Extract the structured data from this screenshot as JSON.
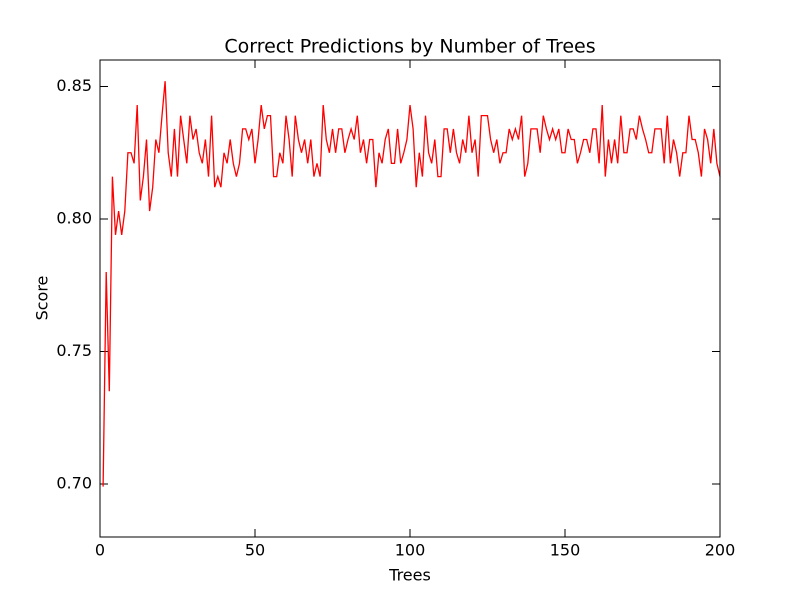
{
  "chart_data": {
    "type": "line",
    "title": "Correct Predictions by Number of Trees",
    "x_label": "Trees",
    "y_label": "Score",
    "x": [
      1,
      2,
      3,
      4,
      5,
      6,
      7,
      8,
      9,
      10,
      11,
      12,
      13,
      14,
      15,
      16,
      17,
      18,
      19,
      20,
      21,
      22,
      23,
      24,
      25,
      26,
      27,
      28,
      29,
      30,
      31,
      32,
      33,
      34,
      35,
      36,
      37,
      38,
      39,
      40,
      41,
      42,
      43,
      44,
      45,
      46,
      47,
      48,
      49,
      50,
      51,
      52,
      53,
      54,
      55,
      56,
      57,
      58,
      59,
      60,
      61,
      62,
      63,
      64,
      65,
      66,
      67,
      68,
      69,
      70,
      71,
      72,
      73,
      74,
      75,
      76,
      77,
      78,
      79,
      80,
      81,
      82,
      83,
      84,
      85,
      86,
      87,
      88,
      89,
      90,
      91,
      92,
      93,
      94,
      95,
      96,
      97,
      98,
      99,
      100,
      101,
      102,
      103,
      104,
      105,
      106,
      107,
      108,
      109,
      110,
      111,
      112,
      113,
      114,
      115,
      116,
      117,
      118,
      119,
      120,
      121,
      122,
      123,
      124,
      125,
      126,
      127,
      128,
      129,
      130,
      131,
      132,
      133,
      134,
      135,
      136,
      137,
      138,
      139,
      140,
      141,
      142,
      143,
      144,
      145,
      146,
      147,
      148,
      149,
      150,
      151,
      152,
      153,
      154,
      155,
      156,
      157,
      158,
      159,
      160,
      161,
      162,
      163,
      164,
      165,
      166,
      167,
      168,
      169,
      170,
      171,
      172,
      173,
      174,
      175,
      176,
      177,
      178,
      179,
      180,
      181,
      182,
      183,
      184,
      185,
      186,
      187,
      188,
      189,
      190,
      191,
      192,
      193,
      194,
      195,
      196,
      197,
      198,
      199,
      200
    ],
    "series": [
      {
        "color": "#ff0000",
        "values": [
          0.699,
          0.78,
          0.735,
          0.816,
          0.794,
          0.803,
          0.794,
          0.803,
          0.825,
          0.825,
          0.821,
          0.843,
          0.807,
          0.816,
          0.83,
          0.803,
          0.812,
          0.83,
          0.825,
          0.839,
          0.852,
          0.825,
          0.816,
          0.834,
          0.816,
          0.839,
          0.83,
          0.821,
          0.839,
          0.83,
          0.834,
          0.825,
          0.821,
          0.83,
          0.816,
          0.839,
          0.812,
          0.816,
          0.812,
          0.825,
          0.821,
          0.83,
          0.821,
          0.816,
          0.821,
          0.834,
          0.834,
          0.83,
          0.834,
          0.821,
          0.83,
          0.843,
          0.834,
          0.839,
          0.839,
          0.816,
          0.816,
          0.825,
          0.821,
          0.839,
          0.83,
          0.816,
          0.839,
          0.83,
          0.825,
          0.83,
          0.821,
          0.83,
          0.816,
          0.821,
          0.816,
          0.843,
          0.83,
          0.825,
          0.834,
          0.825,
          0.834,
          0.834,
          0.825,
          0.83,
          0.834,
          0.83,
          0.839,
          0.825,
          0.83,
          0.821,
          0.83,
          0.83,
          0.812,
          0.825,
          0.821,
          0.83,
          0.834,
          0.821,
          0.821,
          0.834,
          0.821,
          0.825,
          0.83,
          0.843,
          0.834,
          0.812,
          0.825,
          0.816,
          0.839,
          0.825,
          0.821,
          0.83,
          0.816,
          0.816,
          0.834,
          0.834,
          0.825,
          0.834,
          0.825,
          0.821,
          0.83,
          0.825,
          0.839,
          0.825,
          0.83,
          0.816,
          0.839,
          0.839,
          0.839,
          0.83,
          0.825,
          0.83,
          0.821,
          0.825,
          0.825,
          0.834,
          0.83,
          0.834,
          0.83,
          0.839,
          0.816,
          0.821,
          0.834,
          0.834,
          0.834,
          0.825,
          0.839,
          0.834,
          0.83,
          0.834,
          0.83,
          0.834,
          0.825,
          0.825,
          0.834,
          0.83,
          0.83,
          0.821,
          0.825,
          0.83,
          0.83,
          0.825,
          0.834,
          0.834,
          0.821,
          0.843,
          0.816,
          0.83,
          0.821,
          0.83,
          0.821,
          0.839,
          0.825,
          0.825,
          0.834,
          0.834,
          0.83,
          0.839,
          0.834,
          0.83,
          0.825,
          0.825,
          0.834,
          0.834,
          0.834,
          0.821,
          0.839,
          0.821,
          0.83,
          0.825,
          0.816,
          0.825,
          0.825,
          0.839,
          0.83,
          0.83,
          0.825,
          0.816,
          0.834,
          0.83,
          0.821,
          0.834,
          0.821,
          0.816
        ]
      }
    ],
    "xlim": [
      0,
      200
    ],
    "xticks": [
      0,
      50,
      100,
      150,
      200
    ],
    "ylim": [
      0.68,
      0.86
    ],
    "yticks": [
      {
        "value": 0.7,
        "label": "0.70"
      },
      {
        "value": 0.75,
        "label": "0.75"
      },
      {
        "value": 0.8,
        "label": "0.80"
      },
      {
        "value": 0.85,
        "label": "0.85"
      }
    ],
    "grid": false
  }
}
